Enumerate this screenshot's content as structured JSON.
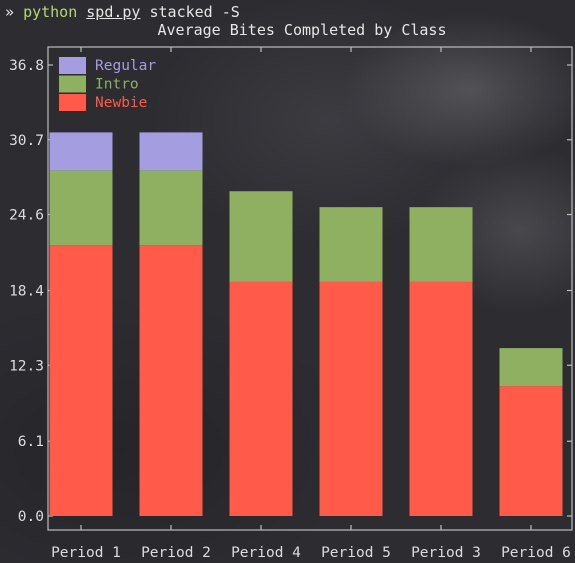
{
  "terminal": {
    "prompt_symbol": "»",
    "command": "python",
    "script": "spd.py",
    "args": "stacked -S"
  },
  "chart_data": {
    "type": "bar",
    "stacked": true,
    "title": "Average Bites Completed by Class",
    "xlabel": "",
    "ylabel": "",
    "categories": [
      "Period 1",
      "Period 2",
      "Period 4",
      "Period 5",
      "Period 3",
      "Period 6"
    ],
    "yticks": [
      "0.0",
      "6.1",
      "12.3",
      "18.4",
      "24.6",
      "30.7",
      "36.8"
    ],
    "ylim": [
      0,
      36.8
    ],
    "series": [
      {
        "name": "Newbie",
        "color": "#ff5a4a",
        "values": [
          22.1,
          22.1,
          19.1,
          19.1,
          19.1,
          10.6
        ]
      },
      {
        "name": "Intro",
        "color": "#8fb060",
        "values": [
          6.1,
          6.1,
          7.4,
          6.1,
          6.1,
          3.1
        ]
      },
      {
        "name": "Regular",
        "color": "#a49de0",
        "values": [
          3.1,
          3.1,
          0,
          0,
          0,
          0
        ]
      }
    ],
    "legend_order": [
      "Regular",
      "Intro",
      "Newbie"
    ],
    "legend_position": "top-left",
    "grid": false
  }
}
